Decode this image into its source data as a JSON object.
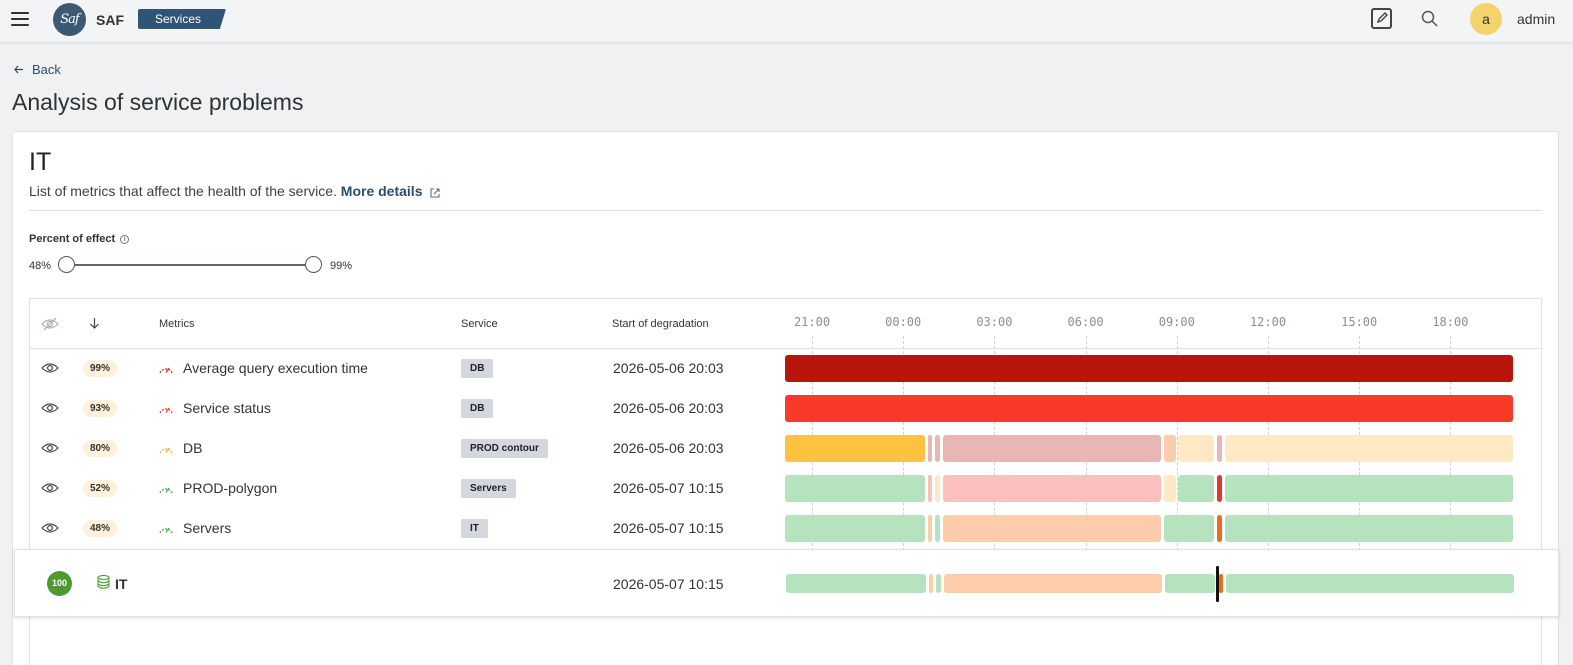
{
  "header": {
    "app_name": "SAF",
    "logo_text": "Saf",
    "breadcrumb": "Services",
    "user_initial": "a",
    "username": "admin"
  },
  "page": {
    "back_label": "Back",
    "title": "Analysis of service problems"
  },
  "service": {
    "name": "IT",
    "description": "List of metrics that affect the health of the service.",
    "details_link": "More details"
  },
  "filter": {
    "label": "Percent of effect",
    "min_label": "48%",
    "max_label": "99%",
    "min_value": 48,
    "max_value": 99
  },
  "table": {
    "columns": [
      "Metrics",
      "Service",
      "Start of degradation"
    ],
    "time_ticks": [
      "21:00",
      "00:00",
      "03:00",
      "06:00",
      "09:00",
      "12:00",
      "15:00",
      "18:00"
    ],
    "rows": [
      {
        "percent": "99%",
        "metric": "Average query execution time",
        "service": "DB",
        "start": "2026-05-06 20:03",
        "gauge_color": "#c0392b"
      },
      {
        "percent": "93%",
        "metric": "Service status",
        "service": "DB",
        "start": "2026-05-06 20:03",
        "gauge_color": "#e74c3c"
      },
      {
        "percent": "80%",
        "metric": "DB",
        "service": "PROD contour",
        "start": "2026-05-06 20:03",
        "gauge_color": "#f1b72c"
      },
      {
        "percent": "52%",
        "metric": "PROD-polygon",
        "service": "Servers",
        "start": "2026-05-07 10:15",
        "gauge_color": "#4caf50"
      },
      {
        "percent": "48%",
        "metric": "Servers",
        "service": "IT",
        "start": "2026-05-07 10:15",
        "gauge_color": "#4caf50"
      }
    ],
    "summary": {
      "health": "100",
      "name": "IT",
      "start": "2026-05-07 10:15"
    }
  },
  "colors": {
    "critical_dark": "#b8160c",
    "critical": "#f93a29",
    "warning": "#fbc33f",
    "warning_light": "#fde9c4",
    "major_light": "#e8b6b3",
    "minor_pink": "#fbc0bd",
    "ok_light": "#b4e3be",
    "peach": "#fcccab",
    "orange": "#ee6a1f",
    "red_tick": "#e0392e",
    "brand": "#2f5475",
    "health_green": "#4d9a31"
  }
}
